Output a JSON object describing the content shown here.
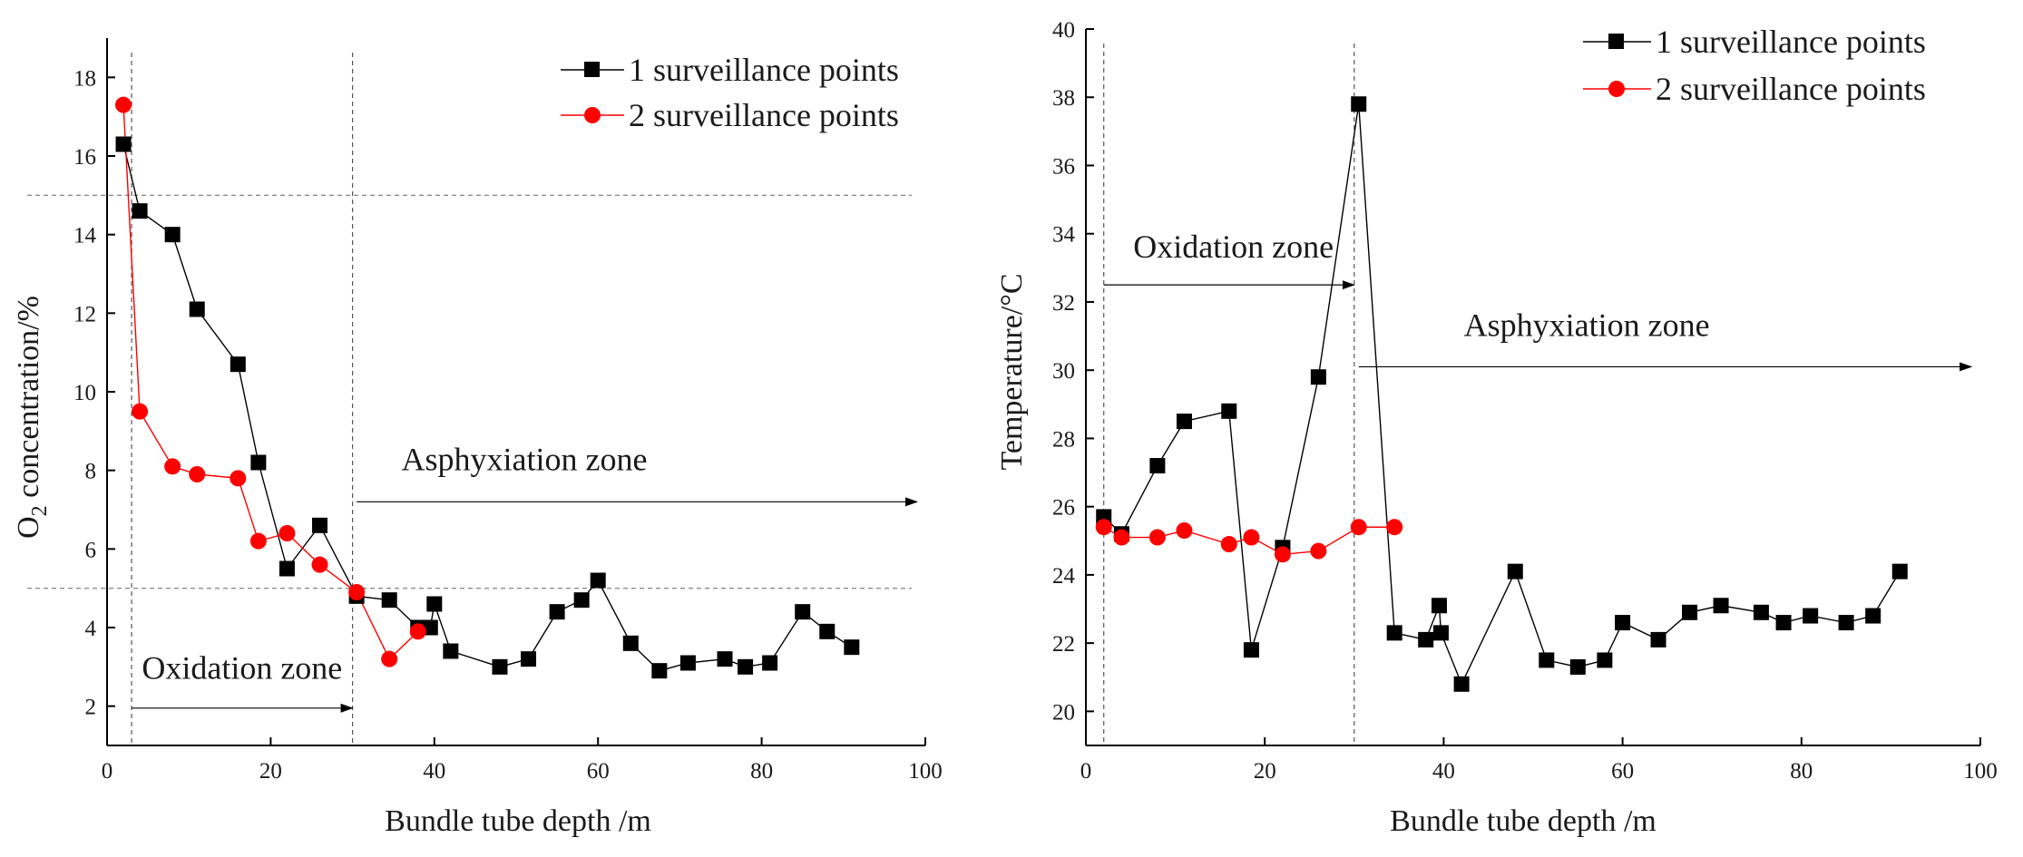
{
  "chart_data": [
    {
      "type": "line",
      "xlabel": "Bundle tube depth /m",
      "ylabel_main": "O",
      "ylabel_sub": "2",
      "ylabel_rest": " concentration/%",
      "xlim": [
        0,
        100
      ],
      "ylim": [
        1,
        19
      ],
      "xticks": [
        "0",
        "20",
        "40",
        "60",
        "80",
        "100"
      ],
      "yticks": [
        "2",
        "4",
        "6",
        "8",
        "10",
        "12",
        "14",
        "16",
        "18"
      ],
      "hlines": [
        15,
        5
      ],
      "vlines": [
        3,
        30
      ],
      "series": [
        {
          "name": "1 surveillance points",
          "color": "#000000",
          "marker": "square",
          "x": [
            2,
            4,
            8,
            11,
            16,
            18.5,
            22,
            26,
            30.5,
            34.5,
            38,
            39.5,
            40,
            42,
            48,
            51.5,
            55,
            58,
            60,
            64,
            67.5,
            71,
            75.5,
            78,
            81,
            85,
            88,
            91
          ],
          "y": [
            16.3,
            14.6,
            14.0,
            12.1,
            10.7,
            8.2,
            5.5,
            6.6,
            4.8,
            4.7,
            4.0,
            4.0,
            4.6,
            3.4,
            3.0,
            3.2,
            4.4,
            4.7,
            5.2,
            3.6,
            2.9,
            3.1,
            3.2,
            3.0,
            3.1,
            4.4,
            3.9,
            3.5
          ]
        },
        {
          "name": "2 surveillance points",
          "color": "#ff0000",
          "marker": "circle",
          "x": [
            2,
            4,
            8,
            11,
            16,
            18.5,
            22,
            26,
            30.5,
            34.5,
            38
          ],
          "y": [
            17.3,
            9.5,
            8.1,
            7.9,
            7.8,
            6.2,
            6.4,
            5.6,
            4.9,
            3.2,
            3.9
          ]
        }
      ],
      "annotations": [
        {
          "text": "Asphyxiation zone",
          "x": 51,
          "y": 8.0,
          "arrow_from": [
            30.5,
            7.2
          ],
          "arrow_to": [
            99,
            7.2
          ]
        },
        {
          "text": "Oxidation zone",
          "x": 16.5,
          "y": 2.7,
          "arrow_from": [
            3,
            1.95
          ],
          "arrow_to": [
            30,
            1.95
          ]
        }
      ]
    },
    {
      "type": "line",
      "xlabel": "Bundle tube depth /m",
      "ylabel": "Temperature/°C",
      "xlim": [
        0,
        100
      ],
      "ylim": [
        19,
        40
      ],
      "xticks": [
        "0",
        "20",
        "40",
        "60",
        "80",
        "100"
      ],
      "yticks": [
        "20",
        "22",
        "24",
        "26",
        "28",
        "30",
        "32",
        "34",
        "36",
        "38",
        "40"
      ],
      "vlines": [
        2,
        30
      ],
      "series": [
        {
          "name": "1 surveillance points",
          "color": "#000000",
          "marker": "square",
          "x": [
            2,
            4,
            8,
            11,
            16,
            18.5,
            22,
            26,
            30.5,
            34.5,
            38,
            39.5,
            39.7,
            42,
            48,
            51.5,
            55,
            58,
            60,
            64,
            67.5,
            71,
            75.5,
            78,
            81,
            85,
            88,
            91
          ],
          "y": [
            25.7,
            25.2,
            27.2,
            28.5,
            28.8,
            21.8,
            24.8,
            29.8,
            37.8,
            22.3,
            22.1,
            23.1,
            22.3,
            20.8,
            24.1,
            21.5,
            21.3,
            21.5,
            22.6,
            22.1,
            22.9,
            23.1,
            22.9,
            22.6,
            22.8,
            22.6,
            22.8,
            24.1
          ]
        },
        {
          "name": "2 surveillance points",
          "color": "#ff0000",
          "marker": "circle",
          "x": [
            2,
            4,
            8,
            11,
            16,
            18.5,
            22,
            26,
            30.5,
            34.5
          ],
          "y": [
            25.4,
            25.1,
            25.1,
            25.3,
            24.9,
            25.1,
            24.6,
            24.7,
            25.4,
            25.4
          ]
        }
      ],
      "annotations": [
        {
          "text": "Oxidation zone",
          "x": 16.5,
          "y": 33.3,
          "arrow_from": [
            2,
            32.5
          ],
          "arrow_to": [
            30,
            32.5
          ]
        },
        {
          "text": "Asphyxiation zone",
          "x": 56,
          "y": 31.0,
          "arrow_from": [
            30.5,
            30.1
          ],
          "arrow_to": [
            99,
            30.1
          ]
        }
      ]
    }
  ]
}
